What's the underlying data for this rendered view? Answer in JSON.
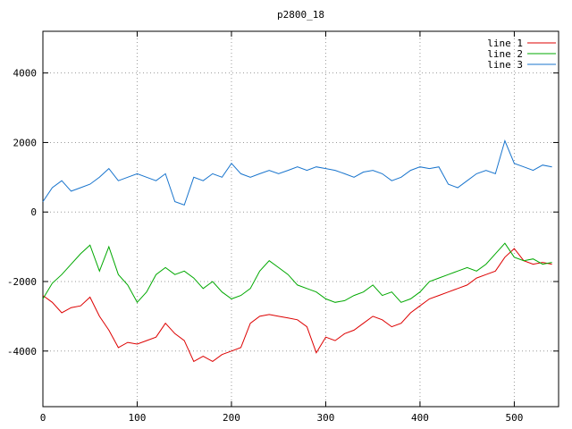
{
  "title": "p2800_18",
  "colors": {
    "line1": "#dd0000",
    "line2": "#00a800",
    "line3": "#1874cd",
    "grid": "#9a9a9a",
    "border": "#000000",
    "background": "#ffffff"
  },
  "chart_data": {
    "type": "line",
    "title": "p2800_18",
    "xlabel": "",
    "ylabel": "",
    "xlim": [
      0,
      547
    ],
    "ylim": [
      -5600,
      5200
    ],
    "xticks": [
      0,
      100,
      200,
      300,
      400,
      500
    ],
    "yticks": [
      -4000,
      -2000,
      0,
      2000,
      4000
    ],
    "grid": true,
    "legend_position": "top-right",
    "x": [
      0,
      10,
      20,
      30,
      40,
      50,
      60,
      70,
      80,
      90,
      100,
      110,
      120,
      130,
      140,
      150,
      160,
      170,
      180,
      190,
      200,
      210,
      220,
      230,
      240,
      250,
      260,
      270,
      280,
      290,
      300,
      310,
      320,
      330,
      340,
      350,
      360,
      370,
      380,
      390,
      400,
      410,
      420,
      430,
      440,
      450,
      460,
      470,
      480,
      490,
      500,
      510,
      520,
      530,
      540
    ],
    "series": [
      {
        "name": "line 1",
        "color": "#dd0000",
        "values": [
          -2400,
          -2600,
          -2900,
          -2750,
          -2700,
          -2450,
          -3000,
          -3400,
          -3900,
          -3750,
          -3800,
          -3700,
          -3600,
          -3200,
          -3500,
          -3700,
          -4300,
          -4150,
          -4300,
          -4100,
          -4000,
          -3900,
          -3200,
          -3000,
          -2950,
          -3000,
          -3050,
          -3100,
          -3300,
          -4050,
          -3600,
          -3700,
          -3500,
          -3400,
          -3200,
          -3000,
          -3100,
          -3300,
          -3200,
          -2900,
          -2700,
          -2500,
          -2400,
          -2300,
          -2200,
          -2100,
          -1900,
          -1800,
          -1700,
          -1300,
          -1050,
          -1400,
          -1500,
          -1450,
          -1500
        ]
      },
      {
        "name": "line 2",
        "color": "#00a800",
        "values": [
          -2500,
          -2050,
          -1800,
          -1500,
          -1200,
          -950,
          -1700,
          -1000,
          -1800,
          -2100,
          -2600,
          -2300,
          -1800,
          -1600,
          -1800,
          -1700,
          -1900,
          -2200,
          -2000,
          -2300,
          -2500,
          -2400,
          -2200,
          -1700,
          -1400,
          -1600,
          -1800,
          -2100,
          -2200,
          -2300,
          -2500,
          -2600,
          -2550,
          -2400,
          -2300,
          -2100,
          -2400,
          -2300,
          -2600,
          -2500,
          -2300,
          -2000,
          -1900,
          -1800,
          -1700,
          -1600,
          -1700,
          -1500,
          -1200,
          -900,
          -1300,
          -1400,
          -1350,
          -1500,
          -1450
        ]
      },
      {
        "name": "line 3",
        "color": "#1874cd",
        "values": [
          300,
          700,
          900,
          600,
          700,
          800,
          1000,
          1250,
          900,
          1000,
          1100,
          1000,
          900,
          1100,
          300,
          200,
          1000,
          900,
          1100,
          1000,
          1400,
          1100,
          1000,
          1100,
          1200,
          1100,
          1200,
          1300,
          1200,
          1300,
          1250,
          1200,
          1100,
          1000,
          1150,
          1200,
          1100,
          900,
          1000,
          1200,
          1300,
          1250,
          1300,
          800,
          700,
          900,
          1100,
          1200,
          1100,
          2050,
          1400,
          1300,
          1200,
          1350,
          1300
        ]
      }
    ]
  }
}
